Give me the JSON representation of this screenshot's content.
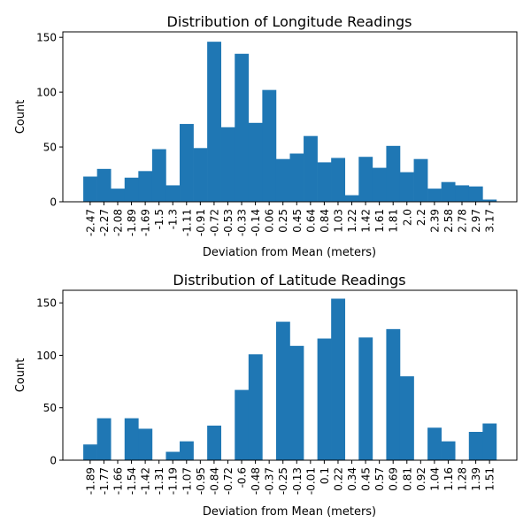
{
  "chart_data": [
    {
      "type": "bar",
      "title": "Distribution of Longitude Readings",
      "xlabel": "Deviation from Mean (meters)",
      "ylabel": "Count",
      "ylim": [
        0,
        155
      ],
      "yticks": [
        0,
        50,
        100,
        150
      ],
      "categories": [
        "-2.47",
        "-2.27",
        "-2.08",
        "-1.89",
        "-1.69",
        "-1.5",
        "-1.3",
        "-1.11",
        "-0.91",
        "-0.72",
        "-0.53",
        "-0.33",
        "-0.14",
        "0.06",
        "0.25",
        "0.45",
        "0.64",
        "0.84",
        "1.03",
        "1.22",
        "1.42",
        "1.61",
        "1.81",
        "2.0",
        "2.2",
        "2.39",
        "2.58",
        "2.78",
        "2.97",
        "3.17"
      ],
      "values": [
        23,
        30,
        12,
        22,
        28,
        48,
        15,
        71,
        49,
        146,
        68,
        135,
        72,
        102,
        39,
        44,
        60,
        36,
        40,
        6,
        41,
        31,
        51,
        27,
        39,
        12,
        18,
        15,
        14,
        2
      ],
      "bar_color": "#1f77b4"
    },
    {
      "type": "bar",
      "title": "Distribution of Latitude Readings",
      "xlabel": "Deviation from Mean (meters)",
      "ylabel": "Count",
      "ylim": [
        0,
        162
      ],
      "yticks": [
        0,
        50,
        100,
        150
      ],
      "categories": [
        "-1.89",
        "-1.77",
        "-1.66",
        "-1.54",
        "-1.42",
        "-1.31",
        "-1.19",
        "-1.07",
        "-0.95",
        "-0.84",
        "-0.72",
        "-0.6",
        "-0.48",
        "-0.37",
        "-0.25",
        "-0.13",
        "-0.01",
        "0.1",
        "0.22",
        "0.34",
        "0.45",
        "0.57",
        "0.69",
        "0.81",
        "0.92",
        "1.04",
        "1.16",
        "1.28",
        "1.39",
        "1.51"
      ],
      "values": [
        15,
        40,
        0,
        40,
        30,
        0,
        8,
        18,
        0,
        33,
        0,
        67,
        101,
        0,
        132,
        109,
        0,
        116,
        154,
        0,
        117,
        0,
        125,
        80,
        0,
        31,
        18,
        0,
        27,
        35
      ],
      "bar_color": "#1f77b4"
    }
  ]
}
